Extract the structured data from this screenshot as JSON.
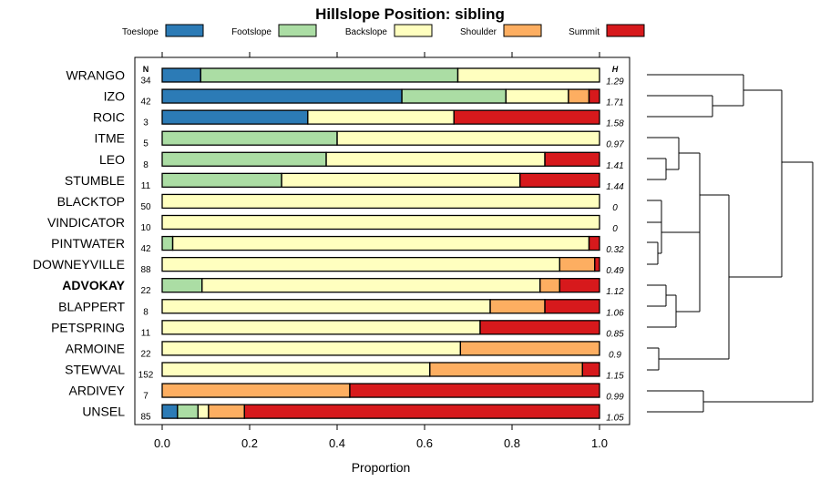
{
  "chart_data": {
    "type": "bar",
    "stacked": true,
    "orientation": "horizontal",
    "title": "Hillslope Position: sibling",
    "xlabel": "Proportion",
    "xlim": [
      0,
      1
    ],
    "xticks": [
      0.0,
      0.2,
      0.4,
      0.6,
      0.8,
      1.0
    ],
    "xtick_labels": [
      "0.0",
      "0.2",
      "0.4",
      "0.6",
      "0.8",
      "1.0"
    ],
    "n_header": "N",
    "h_header": "H",
    "legend": [
      {
        "name": "Toeslope",
        "color": "#2c7bb6"
      },
      {
        "name": "Footslope",
        "color": "#abdda4"
      },
      {
        "name": "Backslope",
        "color": "#ffffbf"
      },
      {
        "name": "Shoulder",
        "color": "#fdae61"
      },
      {
        "name": "Summit",
        "color": "#d7191c"
      }
    ],
    "rows": [
      {
        "label": "WRANGO",
        "bold": false,
        "n": "34",
        "h": "1.29",
        "values": [
          0.088,
          0.588,
          0.324,
          0,
          0
        ]
      },
      {
        "label": "IZO",
        "bold": false,
        "n": "42",
        "h": "1.71",
        "values": [
          0.548,
          0.238,
          0.143,
          0.047,
          0.024
        ]
      },
      {
        "label": "ROIC",
        "bold": false,
        "n": "3",
        "h": "1.58",
        "values": [
          0.333,
          0,
          0.334,
          0,
          0.333
        ]
      },
      {
        "label": "ITME",
        "bold": false,
        "n": "5",
        "h": "0.97",
        "values": [
          0,
          0.4,
          0.6,
          0,
          0
        ]
      },
      {
        "label": "LEO",
        "bold": false,
        "n": "8",
        "h": "1.41",
        "values": [
          0,
          0.375,
          0.5,
          0,
          0.125
        ]
      },
      {
        "label": "STUMBLE",
        "bold": false,
        "n": "11",
        "h": "1.44",
        "values": [
          0,
          0.273,
          0.545,
          0,
          0.182
        ]
      },
      {
        "label": "BLACKTOP",
        "bold": false,
        "n": "50",
        "h": "0",
        "values": [
          0,
          0,
          1.0,
          0,
          0
        ]
      },
      {
        "label": "VINDICATOR",
        "bold": false,
        "n": "10",
        "h": "0",
        "values": [
          0,
          0,
          1.0,
          0,
          0
        ]
      },
      {
        "label": "PINTWATER",
        "bold": false,
        "n": "42",
        "h": "0.32",
        "values": [
          0,
          0.024,
          0.952,
          0,
          0.024
        ]
      },
      {
        "label": "DOWNEYVILLE",
        "bold": false,
        "n": "88",
        "h": "0.49",
        "values": [
          0,
          0,
          0.909,
          0.08,
          0.011
        ]
      },
      {
        "label": "ADVOKAY",
        "bold": true,
        "n": "22",
        "h": "1.12",
        "values": [
          0,
          0.091,
          0.773,
          0.045,
          0.091
        ]
      },
      {
        "label": "BLAPPERT",
        "bold": false,
        "n": "8",
        "h": "1.06",
        "values": [
          0,
          0,
          0.75,
          0.125,
          0.125
        ]
      },
      {
        "label": "PETSPRING",
        "bold": false,
        "n": "11",
        "h": "0.85",
        "values": [
          0,
          0,
          0.727,
          0,
          0.273
        ]
      },
      {
        "label": "ARMOINE",
        "bold": false,
        "n": "22",
        "h": "0.9",
        "values": [
          0,
          0,
          0.682,
          0.318,
          0
        ]
      },
      {
        "label": "STEWVAL",
        "bold": false,
        "n": "152",
        "h": "1.15",
        "values": [
          0,
          0,
          0.612,
          0.349,
          0.039
        ]
      },
      {
        "label": "ARDIVEY",
        "bold": false,
        "n": "7",
        "h": "0.99",
        "values": [
          0,
          0,
          0,
          0.429,
          0.571
        ]
      },
      {
        "label": "UNSEL",
        "bold": false,
        "n": "85",
        "h": "1.05",
        "values": [
          0.035,
          0.047,
          0.024,
          0.082,
          0.812
        ]
      }
    ]
  }
}
